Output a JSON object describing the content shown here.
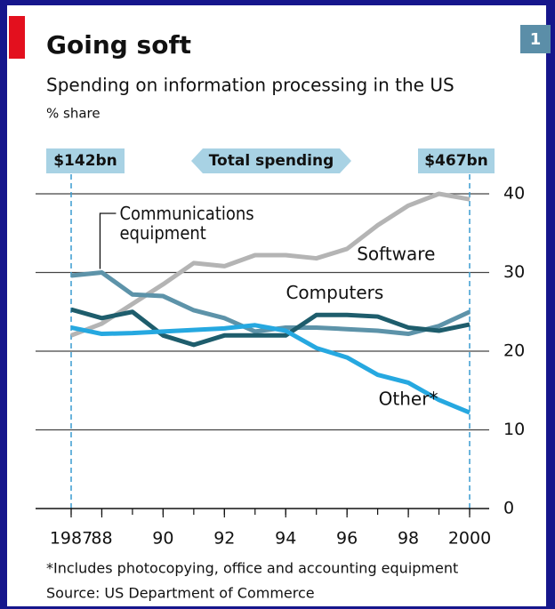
{
  "page_number": "1",
  "chart_data": {
    "type": "line",
    "title": "Going soft",
    "subtitle": "Spending on information processing in the US",
    "unit_label": "% share",
    "annotations": {
      "start_total": "$142bn",
      "end_total": "$467bn",
      "total": "Total spending"
    },
    "footnote": "*Includes photocopying, office and accounting equipment",
    "source": "Source: US Department of Commerce",
    "x": [
      1987,
      1988,
      1989,
      1990,
      1991,
      1992,
      1993,
      1994,
      1995,
      1996,
      1997,
      1998,
      1999,
      2000
    ],
    "series": [
      {
        "name": "Software",
        "color": "#b4b4b4",
        "values": [
          22,
          23.5,
          26,
          28.5,
          31.2,
          30.8,
          32.2,
          32.2,
          31.8,
          33,
          36,
          38.5,
          40,
          39.3
        ]
      },
      {
        "name": "Communications equipment",
        "color": "#5d93a9",
        "values": [
          29.6,
          30,
          27.2,
          27,
          25.2,
          24.2,
          22.5,
          23,
          23,
          22.8,
          22.6,
          22.2,
          23.2,
          25
        ]
      },
      {
        "name": "Computers",
        "color": "#1e5d6c",
        "values": [
          25.3,
          24.2,
          25,
          22,
          20.8,
          22,
          22,
          22,
          24.6,
          24.6,
          24.4,
          23,
          22.6,
          23.4
        ]
      },
      {
        "name": "Other*",
        "color": "#26a8e0",
        "values": [
          23,
          22.2,
          22.3,
          22.5,
          22.7,
          22.9,
          23.3,
          22.6,
          20.4,
          19.2,
          17,
          16,
          13.8,
          12.2
        ]
      }
    ],
    "xlim": [
      1987,
      2000
    ],
    "xticks": [
      1987,
      {
        "value": 1988,
        "label": "88"
      },
      {
        "value": 1990,
        "label": "90"
      },
      {
        "value": 1992,
        "label": "92"
      },
      {
        "value": 1994,
        "label": "94"
      },
      {
        "value": 1996,
        "label": "96"
      },
      {
        "value": 1998,
        "label": "98"
      },
      2000
    ],
    "ylim": [
      0,
      40
    ],
    "yticks": [
      0,
      10,
      20,
      30,
      40
    ],
    "grid": true
  }
}
